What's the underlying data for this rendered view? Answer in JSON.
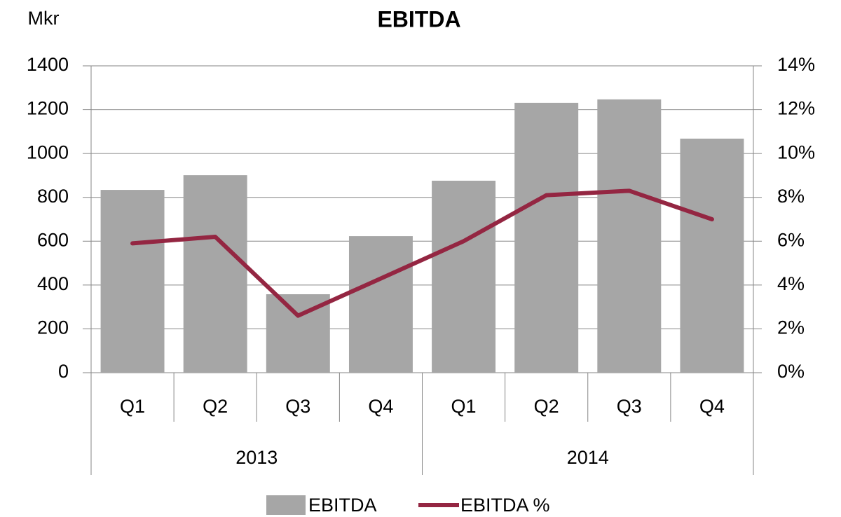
{
  "chart_data": {
    "type": "bar_line",
    "title": "EBITDA",
    "y_label": "Mkr",
    "categories": [
      "Q1",
      "Q2",
      "Q3",
      "Q4",
      "Q1",
      "Q2",
      "Q3",
      "Q4"
    ],
    "groups": [
      "2013",
      "2014"
    ],
    "series": [
      {
        "name": "EBITDA",
        "type": "bar",
        "color": "#a6a6a6",
        "values": [
          834,
          901,
          358,
          623,
          876,
          1231,
          1247,
          1068
        ]
      },
      {
        "name": "EBITDA %",
        "type": "line",
        "color": "#942642",
        "axis": "y2",
        "values": [
          5.9,
          6.2,
          2.6,
          4.3,
          6.0,
          8.1,
          8.3,
          7.0
        ]
      }
    ],
    "ylim": [
      0,
      1400
    ],
    "yticks": [
      0,
      200,
      400,
      600,
      800,
      1000,
      1200,
      1400
    ],
    "y2lim": [
      0,
      14
    ],
    "y2ticks": [
      {
        "value": 0,
        "label": "0%"
      },
      {
        "value": 2,
        "label": "2%"
      },
      {
        "value": 4,
        "label": "4%"
      },
      {
        "value": 6,
        "label": "6%"
      },
      {
        "value": 8,
        "label": "8%"
      },
      {
        "value": 10,
        "label": "10%"
      },
      {
        "value": 12,
        "label": "12%"
      },
      {
        "value": 14,
        "label": "14%"
      }
    ],
    "grid": true,
    "legend": "bottom"
  }
}
